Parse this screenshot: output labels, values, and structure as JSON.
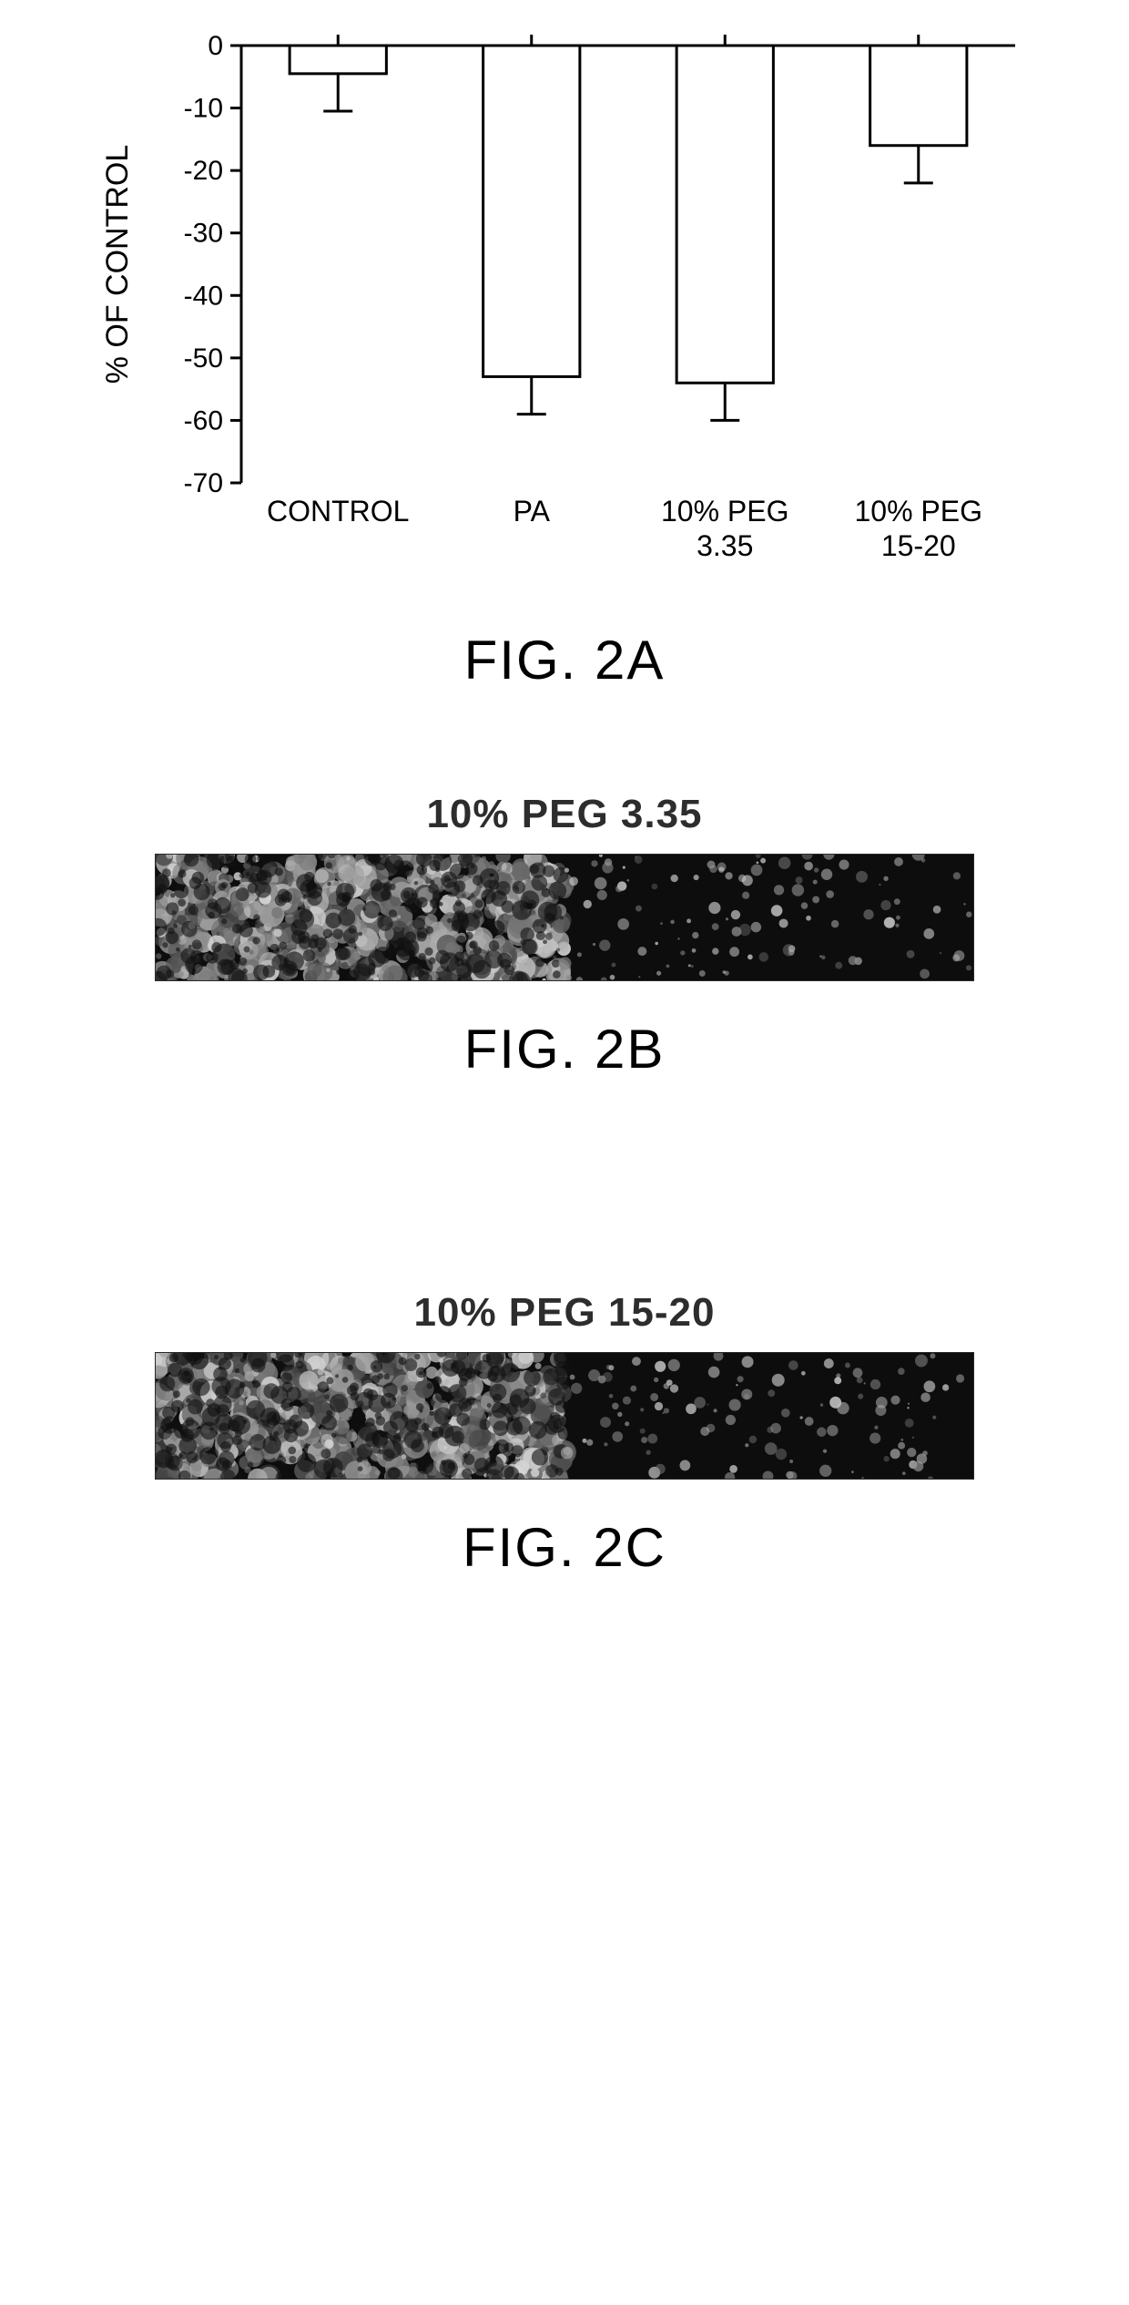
{
  "chart": {
    "type": "bar",
    "categories": [
      "CONTROL",
      "PA",
      "10% PEG 3.35",
      "10% PEG 15-20"
    ],
    "values": [
      -4.5,
      -53,
      -54,
      -16
    ],
    "errors": [
      6,
      6,
      6,
      6
    ],
    "ylabel": "% OF CONTROL",
    "ylim": [
      -70,
      0
    ],
    "ytick_step": 10,
    "yticks": [
      0,
      -10,
      -20,
      -30,
      -40,
      -50,
      -60,
      -70
    ],
    "bar_fill": "#ffffff",
    "bar_stroke": "#000000",
    "bar_stroke_width": 3,
    "axis_stroke": "#000000",
    "axis_stroke_width": 3,
    "error_stroke": "#000000",
    "error_stroke_width": 3,
    "tick_fontsize": 30,
    "label_fontsize": 34,
    "category_fontsize": 32,
    "background_color": "#ffffff",
    "bar_width": 0.5
  },
  "panels": {
    "b": {
      "title": "10% PEG 3.35",
      "figure_label": "FIG. 2B"
    },
    "c": {
      "title": "10% PEG 15-20",
      "figure_label": "FIG. 2C"
    }
  },
  "labels": {
    "fig_a": "FIG. 2A",
    "fig_b": "FIG. 2B",
    "fig_c": "FIG. 2C"
  }
}
